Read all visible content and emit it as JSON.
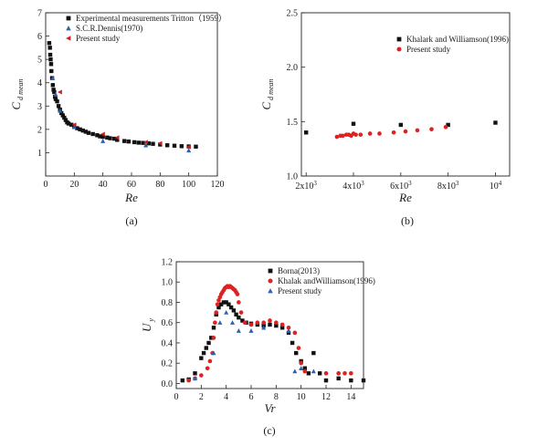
{
  "chart_data": [
    {
      "id": "a",
      "type": "scatter",
      "caption": "(a)",
      "xlabel": "Re",
      "ylabel_main": "C",
      "ylabel_sub": "d mean",
      "xlim": [
        0,
        120
      ],
      "ylim": [
        0,
        7
      ],
      "xticks": [
        0,
        20,
        40,
        60,
        80,
        100,
        120
      ],
      "yticks": [
        1,
        2,
        3,
        4,
        5,
        6,
        7
      ],
      "legend_position": "top-right",
      "series": [
        {
          "name": "Experimental measurements Tritton（1959）",
          "marker": "square",
          "color": "#111111",
          "points": [
            [
              2.5,
              5.7
            ],
            [
              3,
              5.5
            ],
            [
              3.2,
              5.2
            ],
            [
              3.5,
              5.0
            ],
            [
              3.8,
              4.8
            ],
            [
              4,
              4.5
            ],
            [
              4.5,
              4.2
            ],
            [
              5,
              3.9
            ],
            [
              5.5,
              3.7
            ],
            [
              6,
              3.6
            ],
            [
              6.5,
              3.4
            ],
            [
              7,
              3.3
            ],
            [
              8,
              3.2
            ],
            [
              9,
              3.0
            ],
            [
              10,
              2.85
            ],
            [
              11,
              2.7
            ],
            [
              12,
              2.6
            ],
            [
              13,
              2.5
            ],
            [
              14,
              2.4
            ],
            [
              15,
              2.3
            ],
            [
              16,
              2.25
            ],
            [
              18,
              2.2
            ],
            [
              20,
              2.1
            ],
            [
              22,
              2.05
            ],
            [
              24,
              2.0
            ],
            [
              26,
              1.95
            ],
            [
              28,
              1.9
            ],
            [
              30,
              1.85
            ],
            [
              33,
              1.8
            ],
            [
              36,
              1.75
            ],
            [
              38,
              1.7
            ],
            [
              40,
              1.68
            ],
            [
              43,
              1.65
            ],
            [
              45,
              1.62
            ],
            [
              48,
              1.6
            ],
            [
              50,
              1.55
            ],
            [
              55,
              1.5
            ],
            [
              58,
              1.48
            ],
            [
              62,
              1.45
            ],
            [
              65,
              1.43
            ],
            [
              68,
              1.42
            ],
            [
              72,
              1.4
            ],
            [
              75,
              1.38
            ],
            [
              80,
              1.35
            ],
            [
              85,
              1.32
            ],
            [
              90,
              1.3
            ],
            [
              95,
              1.28
            ],
            [
              100,
              1.27
            ],
            [
              105,
              1.26
            ]
          ]
        },
        {
          "name": "S.C.R.Dennis(1970)",
          "marker": "triangle",
          "color": "#2f5fb3",
          "points": [
            [
              5,
              4.2
            ],
            [
              7,
              3.5
            ],
            [
              10,
              2.8
            ],
            [
              20,
              2.1
            ],
            [
              40,
              1.5
            ],
            [
              70,
              1.32
            ],
            [
              100,
              1.1
            ]
          ]
        },
        {
          "name": "Present study",
          "marker": "triangle-left",
          "color": "#cc2020",
          "points": [
            [
              10,
              3.6
            ],
            [
              20,
              2.2
            ],
            [
              40,
              1.8
            ],
            [
              50,
              1.65
            ],
            [
              70,
              1.45
            ],
            [
              80,
              1.4
            ],
            [
              100,
              1.25
            ]
          ]
        }
      ]
    },
    {
      "id": "b",
      "type": "scatter",
      "caption": "(b)",
      "xlabel": "Re",
      "ylabel_main": "C",
      "ylabel_sub": "d mean",
      "xlim": [
        1800,
        10600
      ],
      "ylim": [
        1.0,
        2.5
      ],
      "xtick_labels": [
        {
          "value": 2000,
          "base": "2x10",
          "exp": "3"
        },
        {
          "value": 4000,
          "base": "4x10",
          "exp": "3"
        },
        {
          "value": 6000,
          "base": "6x10",
          "exp": "3"
        },
        {
          "value": 8000,
          "base": "8x10",
          "exp": "3"
        },
        {
          "value": 10000,
          "base": "10",
          "exp": "4"
        }
      ],
      "yticks": [
        "1.0",
        "1.5",
        "2.0",
        "2.5"
      ],
      "legend_position": "top-right",
      "series": [
        {
          "name": "Khalark and Williamson(1996)",
          "marker": "square",
          "color": "#111111",
          "points": [
            [
              2000,
              1.4
            ],
            [
              4000,
              1.48
            ],
            [
              6000,
              1.47
            ],
            [
              8000,
              1.47
            ],
            [
              10000,
              1.49
            ]
          ]
        },
        {
          "name": "Present study",
          "marker": "circle",
          "color": "#dd2222",
          "points": [
            [
              3300,
              1.36
            ],
            [
              3450,
              1.37
            ],
            [
              3550,
              1.37
            ],
            [
              3700,
              1.38
            ],
            [
              3800,
              1.38
            ],
            [
              3900,
              1.37
            ],
            [
              4000,
              1.39
            ],
            [
              4100,
              1.38
            ],
            [
              4300,
              1.38
            ],
            [
              4700,
              1.39
            ],
            [
              5100,
              1.39
            ],
            [
              5700,
              1.4
            ],
            [
              6200,
              1.41
            ],
            [
              6700,
              1.42
            ],
            [
              7300,
              1.43
            ],
            [
              7900,
              1.45
            ]
          ]
        }
      ]
    },
    {
      "id": "c",
      "type": "scatter",
      "caption": "(c)",
      "xlabel": "Vr",
      "ylabel_main": "U",
      "ylabel_sub": "y",
      "xlim": [
        0,
        15
      ],
      "ylim": [
        -0.05,
        1.2
      ],
      "xticks": [
        0,
        2,
        4,
        6,
        8,
        10,
        12,
        14
      ],
      "yticks": [
        "0.0",
        "0.2",
        "0.4",
        "0.6",
        "0.8",
        "1.0",
        "1.2"
      ],
      "legend_position": "top-right",
      "series": [
        {
          "name": "Borna(2013)",
          "marker": "square",
          "color": "#111111",
          "points": [
            [
              0.5,
              0.03
            ],
            [
              1.0,
              0.04
            ],
            [
              1.5,
              0.1
            ],
            [
              2.0,
              0.25
            ],
            [
              2.2,
              0.3
            ],
            [
              2.4,
              0.35
            ],
            [
              2.6,
              0.4
            ],
            [
              2.8,
              0.45
            ],
            [
              3.0,
              0.55
            ],
            [
              3.2,
              0.68
            ],
            [
              3.4,
              0.75
            ],
            [
              3.6,
              0.78
            ],
            [
              3.8,
              0.8
            ],
            [
              4.0,
              0.8
            ],
            [
              4.2,
              0.78
            ],
            [
              4.4,
              0.75
            ],
            [
              4.6,
              0.72
            ],
            [
              4.8,
              0.68
            ],
            [
              5.0,
              0.65
            ],
            [
              5.3,
              0.62
            ],
            [
              5.6,
              0.6
            ],
            [
              6.0,
              0.59
            ],
            [
              6.5,
              0.58
            ],
            [
              7.0,
              0.57
            ],
            [
              7.5,
              0.58
            ],
            [
              8.0,
              0.57
            ],
            [
              8.5,
              0.55
            ],
            [
              9.0,
              0.5
            ],
            [
              9.3,
              0.4
            ],
            [
              9.6,
              0.3
            ],
            [
              10.0,
              0.22
            ],
            [
              10.3,
              0.15
            ],
            [
              10.6,
              0.1
            ],
            [
              11.0,
              0.3
            ],
            [
              11.5,
              0.1
            ],
            [
              12.0,
              0.03
            ],
            [
              13.0,
              0.05
            ],
            [
              14.0,
              0.03
            ],
            [
              15.0,
              0.03
            ]
          ]
        },
        {
          "name": "Khalak andWilliamson(1996)",
          "marker": "circle",
          "color": "#dd2222",
          "points": [
            [
              1.0,
              0.03
            ],
            [
              1.5,
              0.05
            ],
            [
              2.0,
              0.08
            ],
            [
              2.5,
              0.15
            ],
            [
              2.7,
              0.22
            ],
            [
              2.9,
              0.3
            ],
            [
              3.0,
              0.45
            ],
            [
              3.1,
              0.6
            ],
            [
              3.2,
              0.7
            ],
            [
              3.3,
              0.78
            ],
            [
              3.4,
              0.82
            ],
            [
              3.5,
              0.85
            ],
            [
              3.6,
              0.88
            ],
            [
              3.7,
              0.9
            ],
            [
              3.8,
              0.92
            ],
            [
              3.9,
              0.94
            ],
            [
              4.0,
              0.95
            ],
            [
              4.1,
              0.96
            ],
            [
              4.2,
              0.95
            ],
            [
              4.3,
              0.96
            ],
            [
              4.4,
              0.95
            ],
            [
              4.5,
              0.94
            ],
            [
              4.6,
              0.93
            ],
            [
              4.7,
              0.92
            ],
            [
              4.8,
              0.9
            ],
            [
              4.9,
              0.88
            ],
            [
              5.0,
              0.8
            ],
            [
              5.2,
              0.7
            ],
            [
              5.5,
              0.6
            ],
            [
              6.0,
              0.58
            ],
            [
              6.5,
              0.6
            ],
            [
              7.0,
              0.6
            ],
            [
              7.5,
              0.62
            ],
            [
              8.0,
              0.6
            ],
            [
              8.5,
              0.58
            ],
            [
              9.0,
              0.55
            ],
            [
              9.5,
              0.5
            ],
            [
              9.8,
              0.35
            ],
            [
              10.0,
              0.2
            ],
            [
              10.3,
              0.12
            ],
            [
              12.0,
              0.1
            ],
            [
              13.0,
              0.1
            ],
            [
              13.5,
              0.1
            ],
            [
              14.0,
              0.1
            ]
          ]
        },
        {
          "name": "Present study",
          "marker": "triangle",
          "color": "#2f5fb3",
          "points": [
            [
              1.5,
              0.05
            ],
            [
              3.0,
              0.3
            ],
            [
              3.5,
              0.6
            ],
            [
              4.0,
              0.7
            ],
            [
              4.5,
              0.6
            ],
            [
              5.0,
              0.52
            ],
            [
              6.0,
              0.52
            ],
            [
              7.0,
              0.55
            ],
            [
              9.0,
              0.52
            ],
            [
              9.5,
              0.12
            ],
            [
              10.0,
              0.15
            ],
            [
              11.0,
              0.12
            ]
          ]
        }
      ]
    }
  ]
}
